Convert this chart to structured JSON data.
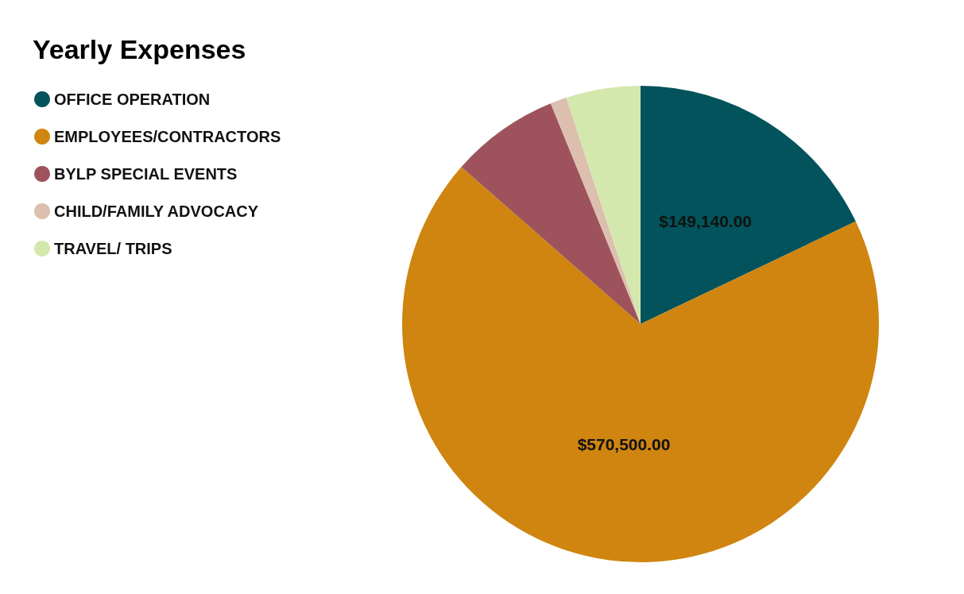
{
  "chart_data": {
    "type": "pie",
    "title": "Yearly Expenses",
    "categories": [
      "OFFICE OPERATION",
      "EMPLOYEES/CONTRACTORS",
      "BYLP SPECIAL EVENTS",
      "CHILD/FAMILY ADVOCACY",
      "TRAVEL/ TRIPS"
    ],
    "values": [
      149140,
      570500,
      61500,
      9200,
      42000
    ],
    "value_labels": [
      "$149,140.00",
      "$570,500.00",
      null,
      null,
      null
    ],
    "colors": [
      "#02535b",
      "#cf850f",
      "#9e535c",
      "#dcbfae",
      "#d4e8ad"
    ],
    "legend": "top left"
  }
}
